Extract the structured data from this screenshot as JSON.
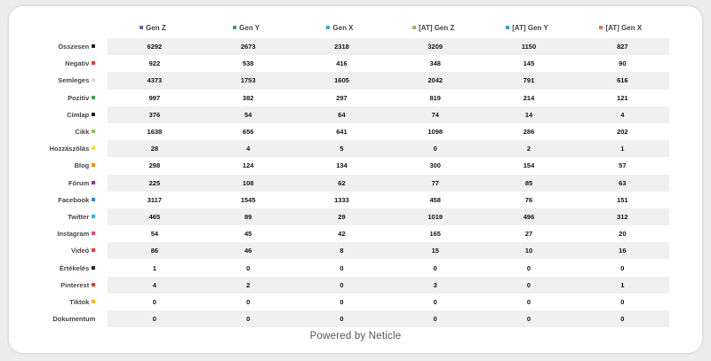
{
  "columns": [
    {
      "label": "Gen Z",
      "color": "#5b6bb5"
    },
    {
      "label": "Gen Y",
      "color": "#2aa198"
    },
    {
      "label": "Gen X",
      "color": "#29abe2"
    },
    {
      "label": "[AT] Gen Z",
      "color": "#8bc34a"
    },
    {
      "label": "[AT] Gen Y",
      "color": "#29abe2"
    },
    {
      "label": "[AT] Gen X",
      "color": "#e8734a"
    }
  ],
  "rows": [
    {
      "label": "Összesen",
      "color": "#222222",
      "values": [
        "6292",
        "2673",
        "2318",
        "3209",
        "1150",
        "827"
      ]
    },
    {
      "label": "Negatív",
      "color": "#e53935",
      "values": [
        "922",
        "538",
        "416",
        "348",
        "145",
        "90"
      ]
    },
    {
      "label": "Semleges",
      "color": "#dddddd",
      "values": [
        "4373",
        "1753",
        "1605",
        "2042",
        "791",
        "616"
      ]
    },
    {
      "label": "Pozitív",
      "color": "#43a047",
      "values": [
        "997",
        "382",
        "297",
        "819",
        "214",
        "121"
      ]
    },
    {
      "label": "Címlap",
      "color": "#222222",
      "values": [
        "376",
        "54",
        "64",
        "74",
        "14",
        "4"
      ]
    },
    {
      "label": "Cikk",
      "color": "#8bc34a",
      "values": [
        "1638",
        "656",
        "641",
        "1098",
        "286",
        "202"
      ]
    },
    {
      "label": "Hozzászólás",
      "color": "#fdd835",
      "values": [
        "28",
        "4",
        "5",
        "0",
        "2",
        "1"
      ]
    },
    {
      "label": "Blog",
      "color": "#fb8c00",
      "values": [
        "298",
        "124",
        "134",
        "300",
        "154",
        "57"
      ]
    },
    {
      "label": "Fórum",
      "color": "#9c27b0",
      "values": [
        "225",
        "108",
        "62",
        "77",
        "85",
        "63"
      ]
    },
    {
      "label": "Facebook",
      "color": "#1e88e5",
      "values": [
        "3117",
        "1545",
        "1333",
        "458",
        "76",
        "151"
      ]
    },
    {
      "label": "Twitter",
      "color": "#29b6f6",
      "values": [
        "465",
        "89",
        "29",
        "1019",
        "496",
        "312"
      ]
    },
    {
      "label": "Instagram",
      "color": "#ec407a",
      "values": [
        "54",
        "45",
        "42",
        "165",
        "27",
        "20"
      ]
    },
    {
      "label": "Videó",
      "color": "#e53935",
      "values": [
        "86",
        "46",
        "8",
        "15",
        "10",
        "16"
      ]
    },
    {
      "label": "Értékelés",
      "color": "#222222",
      "values": [
        "1",
        "0",
        "0",
        "0",
        "0",
        "0"
      ]
    },
    {
      "label": "Pinterest",
      "color": "#e53935",
      "values": [
        "4",
        "2",
        "0",
        "3",
        "0",
        "1"
      ]
    },
    {
      "label": "Tiktok",
      "color": "#ffb300",
      "values": [
        "0",
        "0",
        "0",
        "0",
        "0",
        "0"
      ]
    },
    {
      "label": "Dokumentum",
      "color": "",
      "values": [
        "0",
        "0",
        "0",
        "0",
        "0",
        "0"
      ]
    }
  ],
  "footer": "Powered by Neticle"
}
